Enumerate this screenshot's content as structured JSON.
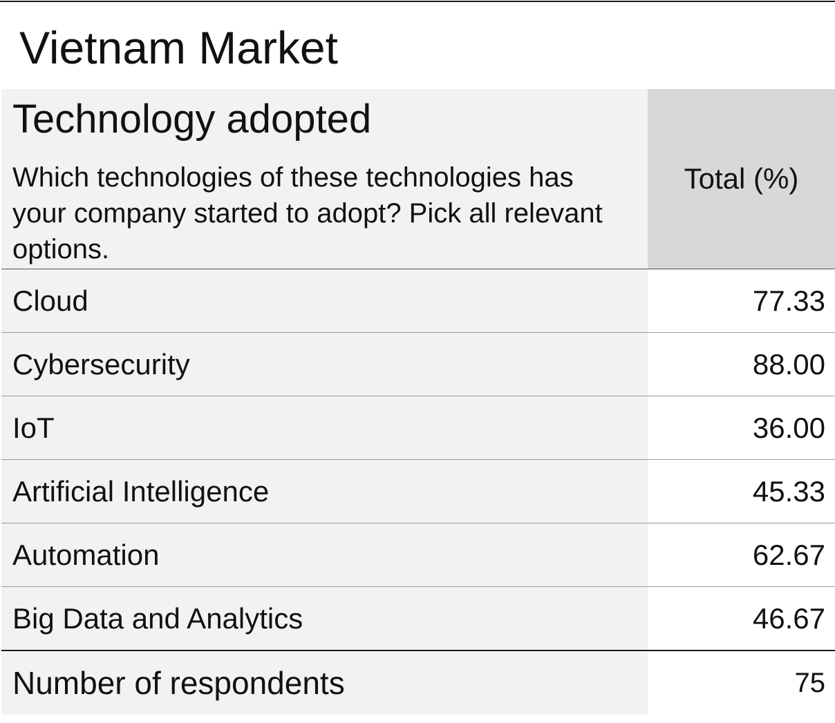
{
  "page": {
    "title": "Vietnam Market"
  },
  "table": {
    "section_title": "Technology adopted",
    "question": "Which technologies of these technologies has your company started to adopt? Pick all relevant options.",
    "column_header": "Total (%)",
    "rows": [
      {
        "label": "Cloud",
        "value": "77.33"
      },
      {
        "label": "Cybersecurity",
        "value": "88.00"
      },
      {
        "label": "IoT",
        "value": "36.00"
      },
      {
        "label": "Artificial Intelligence",
        "value": "45.33"
      },
      {
        "label": "Automation",
        "value": "62.67"
      },
      {
        "label": "Big Data and Analytics",
        "value": "46.67"
      }
    ],
    "footer": {
      "label": "Number of respondents",
      "value": "75"
    }
  },
  "colors": {
    "label_bg": "#f2f2f2",
    "header_value_bg": "#d8d8d8",
    "rule": "#1a1a1a",
    "row_divider": "#9a9a9a"
  }
}
